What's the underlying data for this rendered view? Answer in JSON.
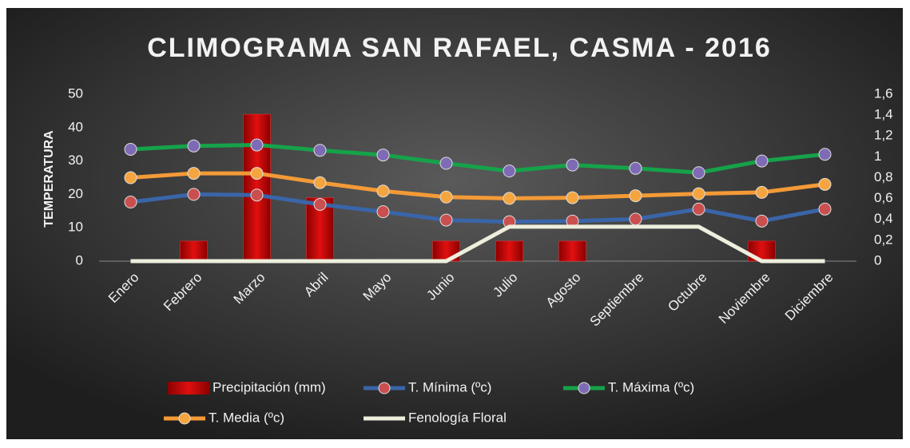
{
  "chart_data": {
    "type": "combo",
    "title": "CLIMOGRAMA SAN RAFAEL, CASMA - 2016",
    "y_label": "TEMPERATURA",
    "categories": [
      "Enero",
      "Febrero",
      "Marzo",
      "Abril",
      "Mayo",
      "Junio",
      "Julio",
      "Agosto",
      "Septiembre",
      "Octubre",
      "Noviembre",
      "Diciembre"
    ],
    "ylim": [
      0,
      50
    ],
    "yticks": [
      0,
      10,
      20,
      30,
      40,
      50
    ],
    "y2lim": [
      0,
      1.6
    ],
    "y2ticks": [
      0,
      {
        "value": 0.2,
        "label": "0,2"
      },
      {
        "value": 0.4,
        "label": "0,4"
      },
      {
        "value": 0.6,
        "label": "0,6"
      },
      {
        "value": 0.8,
        "label": "0,8"
      },
      1,
      {
        "value": 1.2,
        "label": "1,2"
      },
      {
        "value": 1.4,
        "label": "1,4"
      },
      {
        "value": 1.6,
        "label": "1,6"
      }
    ],
    "series": [
      {
        "name": "Precipitación (mm)",
        "kind": "bar",
        "color": "#d40000",
        "values": [
          0,
          6,
          44,
          19,
          0,
          6,
          6,
          6,
          0,
          0,
          6,
          0
        ]
      },
      {
        "name": "T. Mínima (ºc)",
        "kind": "line",
        "color": "#3a65a8",
        "marker": "#c9504f",
        "values": [
          17.7,
          20,
          19.8,
          17,
          14.8,
          12.3,
          11.8,
          12,
          12.6,
          15.6,
          12,
          15.6
        ]
      },
      {
        "name": "T. Máxima (ºc)",
        "kind": "line",
        "color": "#16a24a",
        "marker": "#7f6bb5",
        "values": [
          33.5,
          34.5,
          34.8,
          33.2,
          31.8,
          29.3,
          27,
          28.8,
          27.8,
          26.5,
          30,
          32
        ]
      },
      {
        "name": "T. Media (ºc)",
        "kind": "line",
        "color": "#f39a37",
        "marker": "#f5a540",
        "values": [
          25,
          26.3,
          26.3,
          23.5,
          21,
          19.2,
          18.8,
          19,
          19.6,
          20.2,
          20.6,
          23
        ]
      },
      {
        "name": "Fenología Floral",
        "kind": "line",
        "axis": "y2",
        "color": "#eeeedd",
        "values": [
          0,
          0,
          0,
          0,
          0,
          0,
          0.33,
          0.33,
          0.33,
          0.33,
          0,
          0
        ]
      }
    ]
  }
}
